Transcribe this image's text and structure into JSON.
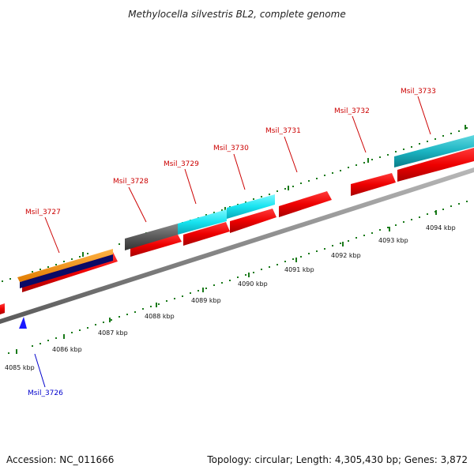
{
  "title": "Methylocella silvestris BL2, complete genome",
  "accession": "Accession: NC_011666",
  "summary": "Topology: circular; Length: 4,305,430 bp; Genes: 3,872",
  "colors": {
    "forward_label": "#cc0000",
    "reverse_label": "#0000cc",
    "forward_gene": "#ff0000",
    "tick": "#1a7a1a",
    "backbone": "#888888"
  },
  "kbp_labels": [
    "4085 kbp",
    "4086 kbp",
    "4087 kbp",
    "4088 kbp",
    "4089 kbp",
    "4090 kbp",
    "4091 kbp",
    "4092 kbp",
    "4093 kbp",
    "4094 kbp"
  ],
  "genes": [
    {
      "label": "Msil_3726",
      "strand": "reverse"
    },
    {
      "label": "Msil_3727",
      "strand": "forward"
    },
    {
      "label": "Msil_3728",
      "strand": "forward"
    },
    {
      "label": "Msil_3729",
      "strand": "forward"
    },
    {
      "label": "Msil_3730",
      "strand": "forward"
    },
    {
      "label": "Msil_3731",
      "strand": "forward"
    },
    {
      "label": "Msil_3732",
      "strand": "forward"
    },
    {
      "label": "Msil_3733",
      "strand": "forward"
    }
  ]
}
